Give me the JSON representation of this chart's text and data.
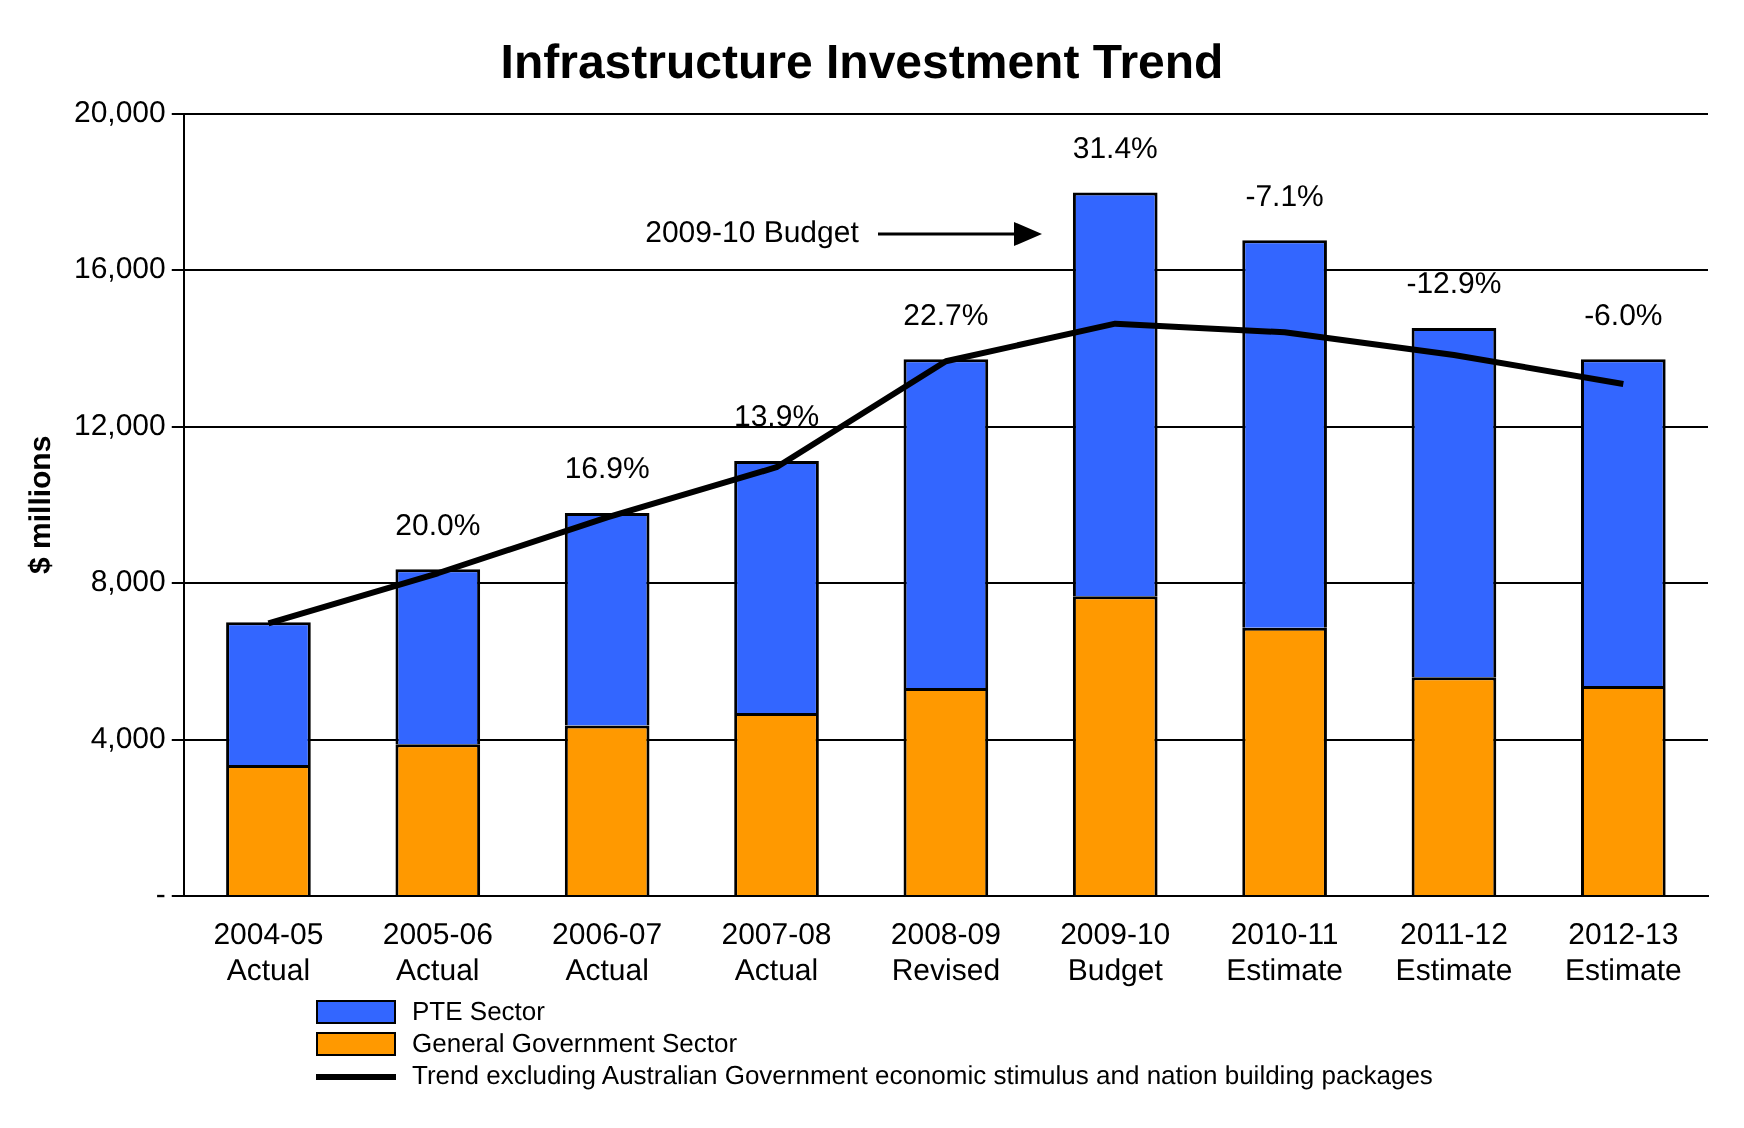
{
  "chart_data": {
    "type": "bar",
    "title": "Infrastructure Investment Trend",
    "ylabel": "$ millions",
    "categories": [
      "2004-05\nActual",
      "2005-06\nActual",
      "2006-07\nActual",
      "2007-08\nActual",
      "2008-09\nRevised",
      "2009-10\nBudget",
      "2010-11\nEstimate",
      "2011-12\nEstimate",
      "2012-13\nEstimate"
    ],
    "stacked": true,
    "series": [
      {
        "name": "General Government Sector",
        "color": "#ff9900",
        "values": [
          3350,
          3880,
          4360,
          4680,
          5320,
          7660,
          6860,
          5590,
          5370
        ]
      },
      {
        "name": "PTE Sector",
        "color": "#3366ff",
        "values": [
          3650,
          4470,
          5430,
          6440,
          8400,
          10320,
          9900,
          8930,
          8350
        ]
      },
      {
        "name": "Trend excluding Australian Government economic stimulus and nation building packages",
        "type": "line",
        "color": "#000000",
        "values": [
          6970,
          8250,
          9680,
          10960,
          13670,
          14630,
          14410,
          13830,
          13090
        ]
      }
    ],
    "ylim": [
      0,
      20000
    ],
    "yticks": [
      {
        "value": 0,
        "label": "-"
      },
      {
        "value": 4000,
        "label": "4,000"
      },
      {
        "value": 8000,
        "label": "8,000"
      },
      {
        "value": 12000,
        "label": "12,000"
      },
      {
        "value": 16000,
        "label": "16,000"
      },
      {
        "value": 20000,
        "label": "20,000"
      }
    ],
    "grid": "y",
    "legend": "bottom",
    "marker": "none",
    "line_style": "solid",
    "annotations": [
      {
        "text": "20.0%",
        "x": "2005-06\nActual",
        "y": 8350
      },
      {
        "text": "16.9%",
        "x": "2006-07\nActual",
        "y": 9790
      },
      {
        "text": "13.9%",
        "x": "2007-08\nActual",
        "y": 11120
      },
      {
        "text": "22.7%",
        "x": "2008-09\nRevised",
        "y": 13720
      },
      {
        "text": "31.4%",
        "x": "2009-10\nBudget",
        "y": 17980
      },
      {
        "text": "-7.1%",
        "x": "2010-11\nEstimate",
        "y": 16760
      },
      {
        "text": "-12.9%",
        "x": "2011-12\nEstimate",
        "y": 14520
      },
      {
        "text": "-6.0%",
        "x": "2012-13\nEstimate",
        "y": 13720
      },
      "2009-10 Budget"
    ]
  }
}
